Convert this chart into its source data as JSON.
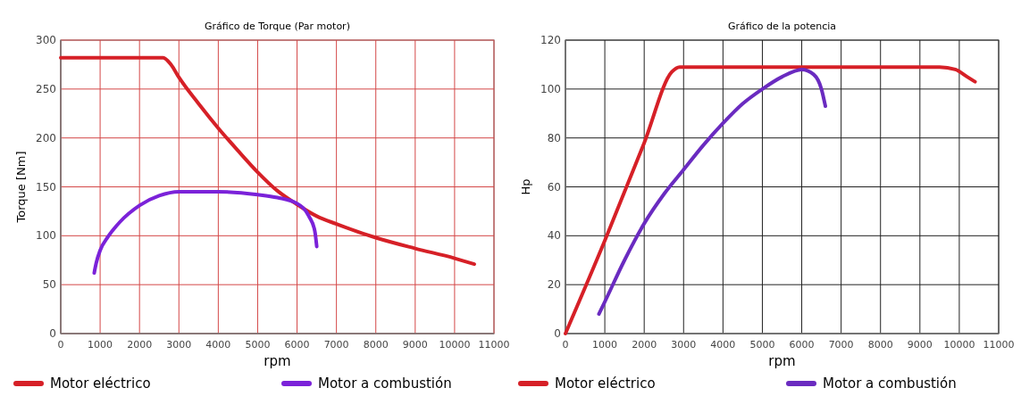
{
  "chart_data": [
    {
      "type": "line",
      "title": "Gráfico de Torque (Par motor)",
      "xlabel": "rpm",
      "ylabel": "Torque [Nm]",
      "xlim": [
        0,
        11000
      ],
      "ylim": [
        0,
        300
      ],
      "xticks": [
        0,
        1000,
        2000,
        3000,
        4000,
        5000,
        6000,
        7000,
        8000,
        9000,
        10000,
        11000
      ],
      "yticks": [
        0,
        50,
        100,
        150,
        200,
        250,
        300
      ],
      "grid": true,
      "legend": "bottom",
      "marker": "none",
      "line_style": "solid",
      "series": [
        {
          "name": "Motor eléctrico",
          "color": "#d62027",
          "x": [
            0,
            2600,
            2800,
            3000,
            3500,
            4000,
            4500,
            5000,
            5500,
            6000,
            6500,
            7000,
            8000,
            9000,
            10000,
            10500
          ],
          "values": [
            282,
            282,
            275,
            262,
            235,
            210,
            187,
            165,
            146,
            132,
            120,
            112,
            98,
            87,
            77,
            71
          ]
        },
        {
          "name": "Motor a combustión",
          "color": "#7b22d9",
          "x": [
            850,
            900,
            1000,
            1200,
            1500,
            2000,
            2500,
            3000,
            4000,
            5000,
            5500,
            6000,
            6300,
            6450,
            6500
          ],
          "values": [
            62,
            72,
            85,
            99,
            114,
            131,
            141,
            145,
            145,
            142,
            139,
            133,
            120,
            105,
            89
          ]
        }
      ]
    },
    {
      "type": "line",
      "title": "Gráfico de la potencia",
      "xlabel": "rpm",
      "ylabel": "Hp",
      "xlim": [
        0,
        11000
      ],
      "ylim": [
        0,
        120
      ],
      "xticks": [
        0,
        1000,
        2000,
        3000,
        4000,
        5000,
        6000,
        7000,
        8000,
        9000,
        10000,
        11000
      ],
      "yticks": [
        0,
        20,
        40,
        60,
        80,
        100,
        120
      ],
      "grid": true,
      "legend": "bottom",
      "marker": "none",
      "line_style": "solid",
      "series": [
        {
          "name": "Motor eléctrico",
          "color": "#d62027",
          "x": [
            0,
            1000,
            2000,
            2700,
            2900,
            9500,
            9900,
            10200,
            10400
          ],
          "values": [
            0,
            38,
            78,
            107,
            109,
            109,
            108,
            105,
            103
          ]
        },
        {
          "name": "Motor a combustión",
          "color": "#6a2bc0",
          "x": [
            850,
            1000,
            1500,
            2000,
            2500,
            3000,
            3500,
            4000,
            4500,
            5000,
            5500,
            6000,
            6300,
            6500,
            6600
          ],
          "values": [
            8,
            13,
            30,
            45,
            57,
            67,
            77,
            86,
            94,
            100,
            105,
            108,
            106,
            100,
            93
          ]
        }
      ]
    }
  ]
}
